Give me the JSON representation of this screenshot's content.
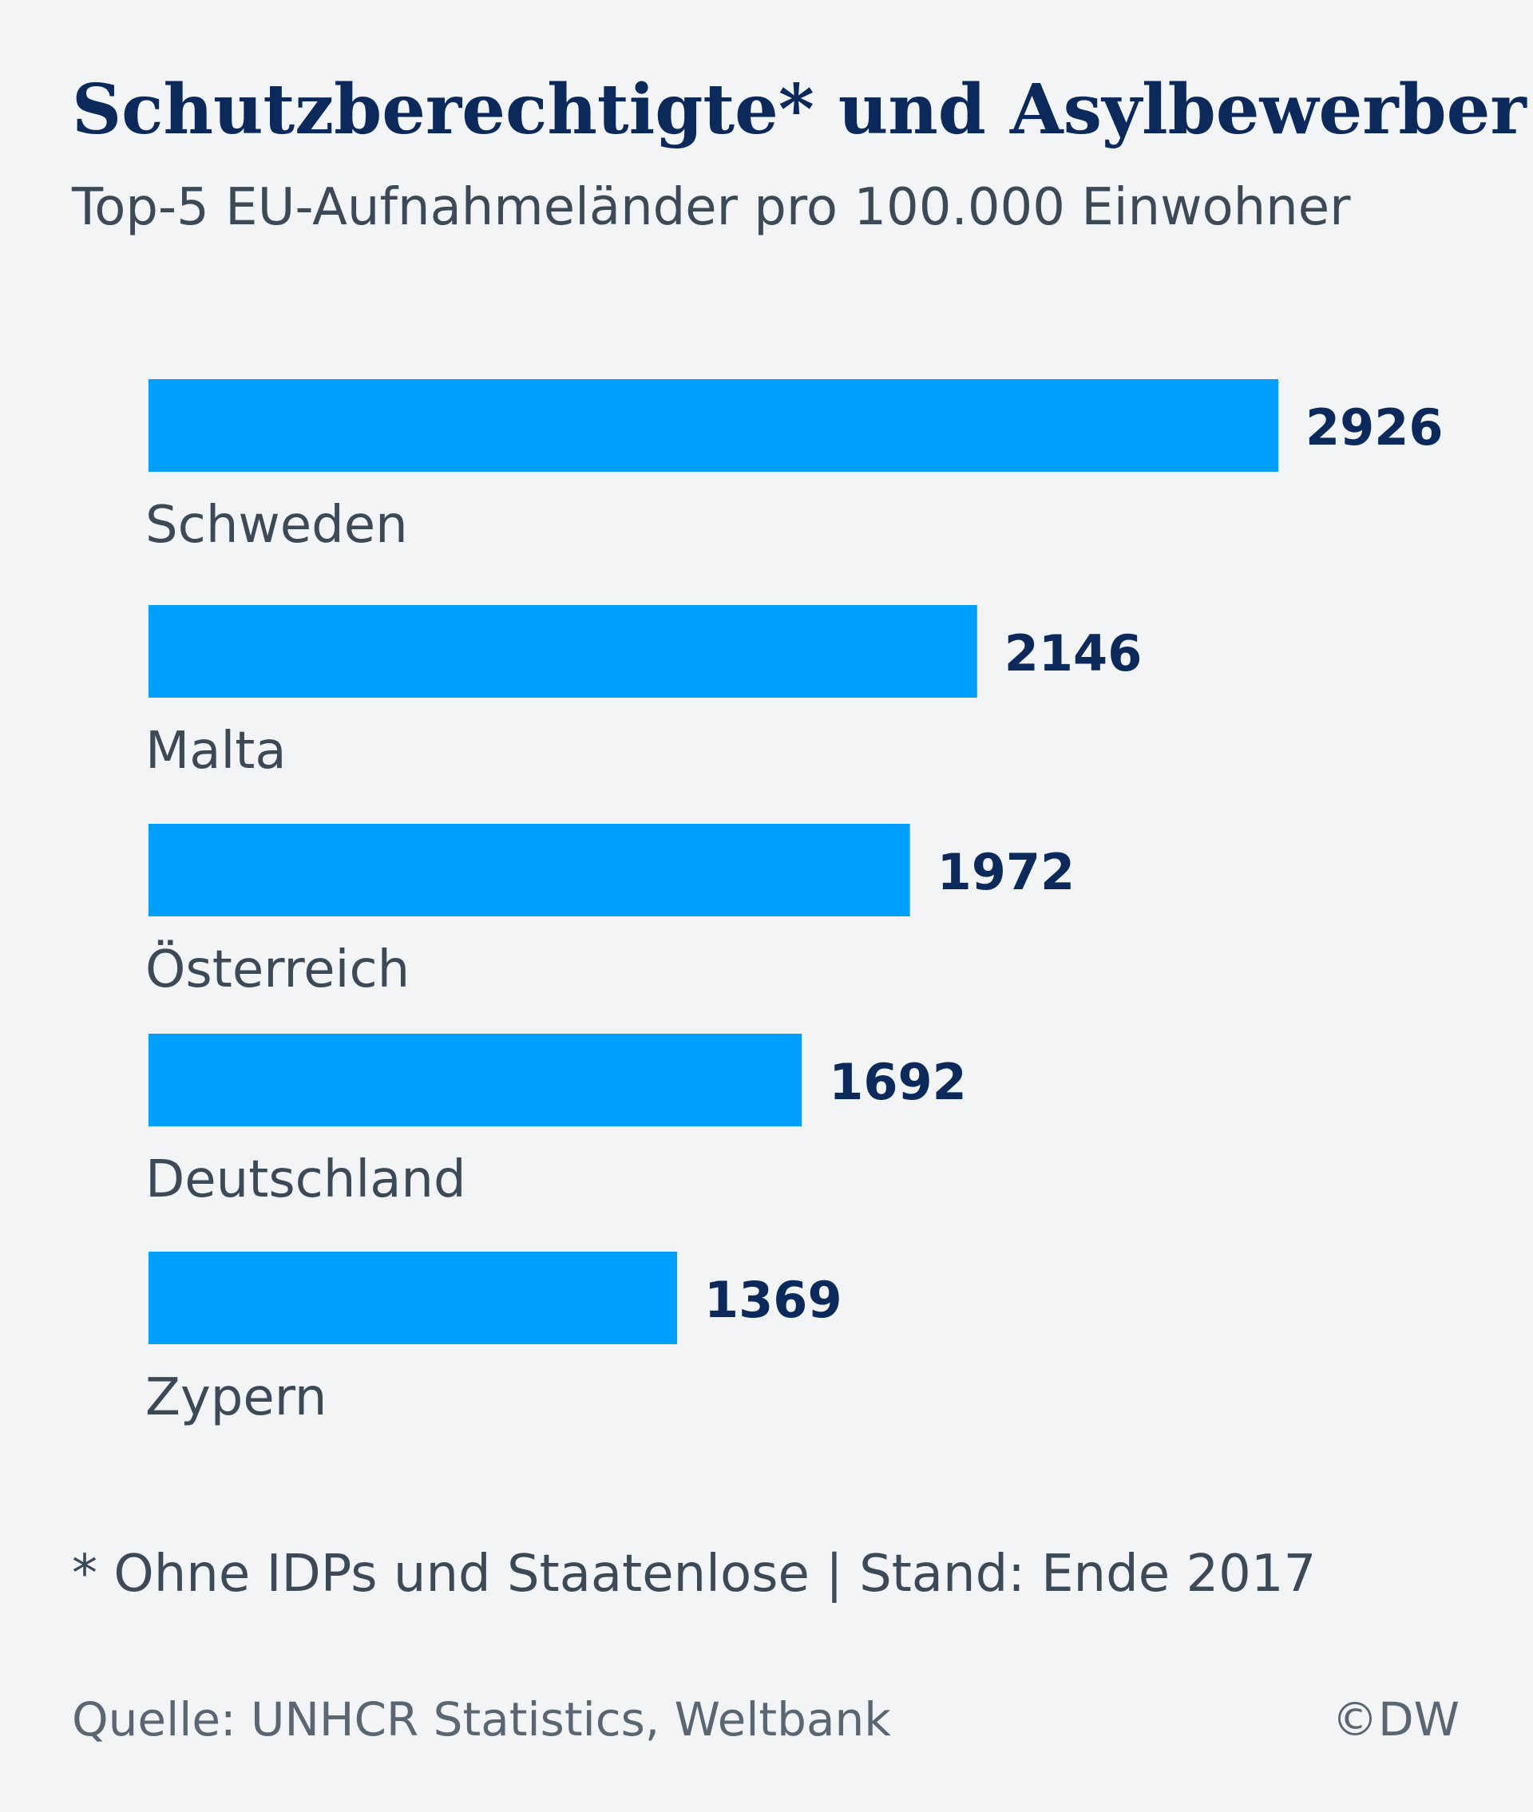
{
  "header": {
    "title": "Schutzberechtigte* und Asylbewerber",
    "subtitle": "Top-5 EU-Aufnahmeländer pro 100.000 Einwohner"
  },
  "chart_data": {
    "type": "bar",
    "orientation": "horizontal",
    "categories": [
      "Schweden",
      "Malta",
      "Österreich",
      "Deutschland",
      "Zypern"
    ],
    "values": [
      2926,
      2146,
      1972,
      1692,
      1369
    ],
    "bar_color": "#009ffd",
    "value_label_color": "#0b2a5b",
    "category_label_color": "#3c4a57",
    "data_labels": [
      "2926",
      "2146",
      "1972",
      "1692",
      "1369"
    ],
    "grid": false
  },
  "footer": {
    "footnote": "* Ohne IDPs und Staatenlose | Stand: Ende 2017",
    "source": "Quelle: UNHCR Statistics, Weltbank",
    "credit": "©DW"
  }
}
